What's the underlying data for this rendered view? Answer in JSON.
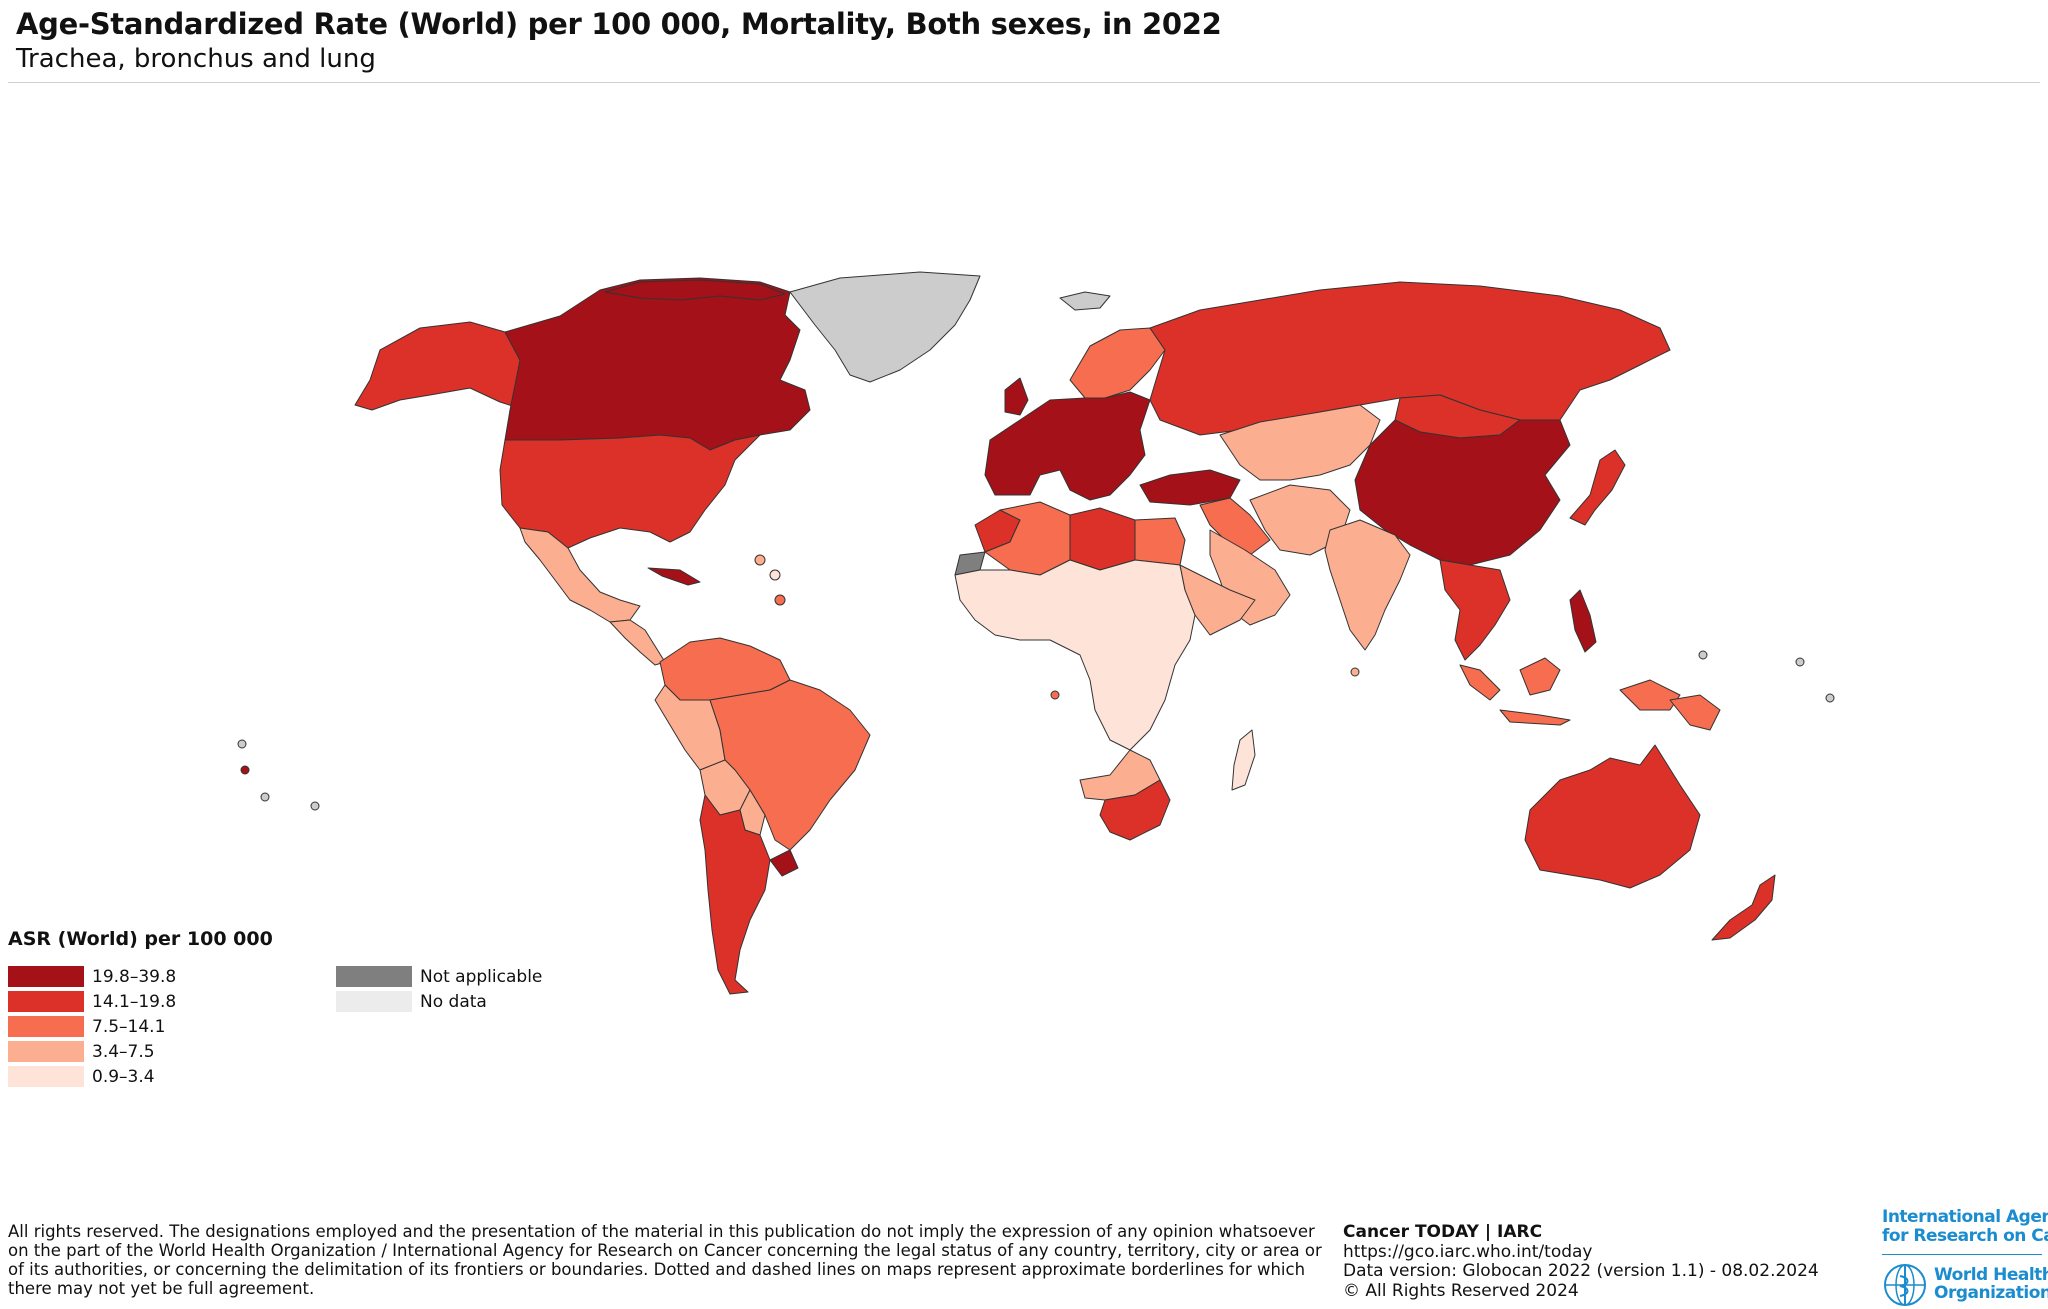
{
  "header": {
    "title": "Age-Standardized Rate (World) per 100 000, Mortality, Both sexes, in 2022",
    "subtitle": "Trachea, bronchus and lung"
  },
  "colors": {
    "c5": "#a51119",
    "c4": "#dc3129",
    "c3": "#f66d4f",
    "c2": "#fcae91",
    "c1": "#fde3d8",
    "not_applicable": "#7f7f7f",
    "no_data": "#cccccc",
    "no_data_swatch": "#ececec",
    "border": "#333333",
    "brand_blue": "#1a8ccf"
  },
  "legend": {
    "title": "ASR (World) per 100 000",
    "classes": [
      {
        "label": "19.8–39.8",
        "color": "#a51119"
      },
      {
        "label": "14.1–19.8",
        "color": "#dc3129"
      },
      {
        "label": "7.5–14.1",
        "color": "#f66d4f"
      },
      {
        "label": "3.4–7.5",
        "color": "#fcae91"
      },
      {
        "label": "0.9–3.4",
        "color": "#fde3d8"
      }
    ],
    "extra": [
      {
        "label": "Not applicable",
        "color": "#7f7f7f"
      },
      {
        "label": "No data",
        "color": "#ececec"
      }
    ]
  },
  "map": {
    "regions": [
      {
        "name": "canada",
        "class": "c5"
      },
      {
        "name": "alaska",
        "class": "c4"
      },
      {
        "name": "usa",
        "class": "c4"
      },
      {
        "name": "mexico",
        "class": "c2"
      },
      {
        "name": "central-america",
        "class": "c2"
      },
      {
        "name": "cuba",
        "class": "c5"
      },
      {
        "name": "greenland",
        "class": "no_data"
      },
      {
        "name": "iceland",
        "class": "no_data"
      },
      {
        "name": "colombia-venezuela",
        "class": "c3"
      },
      {
        "name": "peru-ecuador",
        "class": "c2"
      },
      {
        "name": "brazil",
        "class": "c3"
      },
      {
        "name": "bolivia",
        "class": "c2"
      },
      {
        "name": "paraguay",
        "class": "c2"
      },
      {
        "name": "argentina-chile",
        "class": "c4"
      },
      {
        "name": "uruguay",
        "class": "c5"
      },
      {
        "name": "western-europe",
        "class": "c5"
      },
      {
        "name": "scandinavia",
        "class": "c3"
      },
      {
        "name": "russia",
        "class": "c4"
      },
      {
        "name": "kazakhstan-central-asia",
        "class": "c2"
      },
      {
        "name": "turkey-caucasus",
        "class": "c5"
      },
      {
        "name": "middle-east",
        "class": "c3"
      },
      {
        "name": "arabian-peninsula",
        "class": "c2"
      },
      {
        "name": "iran-afghanistan",
        "class": "c2"
      },
      {
        "name": "india",
        "class": "c2"
      },
      {
        "name": "china",
        "class": "c5"
      },
      {
        "name": "mongolia",
        "class": "c4"
      },
      {
        "name": "japan-korea",
        "class": "c4"
      },
      {
        "name": "southeast-asia",
        "class": "c4"
      },
      {
        "name": "indonesia",
        "class": "c3"
      },
      {
        "name": "philippines",
        "class": "c5"
      },
      {
        "name": "png",
        "class": "c3"
      },
      {
        "name": "australia",
        "class": "c4"
      },
      {
        "name": "new-zealand",
        "class": "c4"
      },
      {
        "name": "north-africa-west",
        "class": "c4"
      },
      {
        "name": "algeria",
        "class": "c3"
      },
      {
        "name": "libya",
        "class": "c4"
      },
      {
        "name": "egypt",
        "class": "c3"
      },
      {
        "name": "western-sahara",
        "class": "not_applicable"
      },
      {
        "name": "sub-saharan-africa",
        "class": "c1"
      },
      {
        "name": "east-africa",
        "class": "c2"
      },
      {
        "name": "southern-africa",
        "class": "c2"
      },
      {
        "name": "south-africa",
        "class": "c4"
      },
      {
        "name": "madagascar",
        "class": "c1"
      }
    ]
  },
  "footer": {
    "note_lines": [
      "All rights reserved. The designations employed and the presentation of the material in this publication do not imply the expression of any opinion whatsoever",
      "on the part of the World Health Organization / International Agency for Research on Cancer concerning the legal status of any country, territory, city or area or",
      "of its authorities, or concerning the delimitation of its frontiers or boundaries. Dotted and dashed lines on maps represent approximate borderlines for which",
      "there may not yet be full agreement."
    ],
    "credits": {
      "title": "Cancer TODAY | IARC",
      "url": "https://gco.iarc.who.int/today",
      "version": "Data version: Globocan 2022 (version 1.1) - 08.02.2024",
      "copyright": "© All Rights Reserved 2024"
    },
    "logos": {
      "iarc_line1": "International Agency",
      "iarc_line2": "for Research on Cancer",
      "who_line1": "World Health",
      "who_line2": "Organization"
    }
  }
}
